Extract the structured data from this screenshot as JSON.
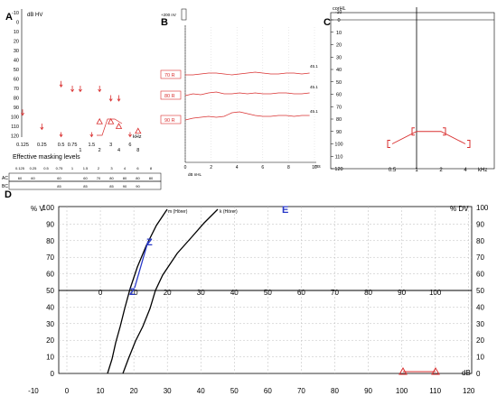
{
  "panel_labels": {
    "a": "A",
    "b": "B",
    "c": "C",
    "d": "D"
  },
  "panel_a": {
    "y_unit": "dB HV",
    "y_ticks": [
      "-10",
      "0",
      "10",
      "20",
      "30",
      "40",
      "50",
      "60",
      "70",
      "80",
      "90",
      "100",
      "110",
      "120"
    ],
    "x_ticks_top": [
      "0.125",
      "0.25",
      "0.5",
      "0.75",
      "1.5",
      "3",
      "6"
    ],
    "x_ticks_bottom": [
      "1",
      "2",
      "4",
      "8"
    ],
    "x_unit": "kHz",
    "masking_title": "Effective masking levels",
    "masking_freqs": [
      "0.125",
      "0.25",
      "0.5",
      "0.75",
      "1",
      "1.5",
      "2",
      "3",
      "4",
      "6",
      "8"
    ],
    "masking_rows": [
      {
        "label": "AC",
        "values": [
          "60",
          "60",
          "",
          "60",
          "",
          "60",
          "70",
          "80",
          "80",
          "80",
          "80"
        ]
      },
      {
        "label": "BC",
        "values": [
          "",
          "",
          "",
          "85",
          "",
          "85",
          "",
          "85",
          "90",
          "90",
          ""
        ]
      }
    ],
    "colors": {
      "marker": "#d93030"
    }
  },
  "panel_b": {
    "scale_label": "+200 nV",
    "y_label": "dB nHL",
    "x_ticks": [
      "0",
      "2",
      "4",
      "6",
      "8",
      "10"
    ],
    "x_unit": "ms",
    "traces": [
      {
        "level": "70 R",
        "value": "45.1"
      },
      {
        "level": "80 R",
        "value": "45.1"
      },
      {
        "level": "90 R",
        "value": "45.1"
      }
    ]
  },
  "panel_c": {
    "y_unit": "corHL",
    "y_ticks": [
      "0",
      "10",
      "20",
      "30",
      "40",
      "50",
      "60",
      "70",
      "80",
      "90",
      "100",
      "110",
      "120"
    ],
    "x_ticks": [
      "0.5",
      "1",
      "2",
      "4"
    ],
    "x_unit": "kHz",
    "top_tick": "-10"
  },
  "panel_d": {
    "left_unit": "% V",
    "right_unit": "% DV",
    "top_ticks": [
      "0",
      "10",
      "20",
      "30",
      "40",
      "50",
      "60",
      "70",
      "80",
      "90",
      "100"
    ],
    "y_ticks": [
      "100",
      "90",
      "80",
      "70",
      "60",
      "50",
      "40",
      "30",
      "20",
      "10",
      "0"
    ],
    "x_ticks": [
      "-10",
      "0",
      "10",
      "20",
      "30",
      "40",
      "50",
      "60",
      "70",
      "80",
      "90",
      "100",
      "110",
      "120"
    ],
    "x_unit": "dB",
    "curve_labels": [
      "m (Hörer)",
      "k (Hörer)"
    ],
    "marker_e": "E",
    "marker_z": "Z"
  },
  "chart_data": [
    {
      "type": "scatter",
      "x": [
        0.125,
        0.25,
        0.5,
        0.75,
        1,
        1.5,
        2,
        3,
        4,
        6,
        8
      ],
      "series": [
        {
          "values": [
            95,
            110,
            65,
            70,
            70,
            null,
            70,
            80,
            80,
            null,
            null
          ]
        },
        {
          "values": [
            null,
            null,
            120,
            null,
            null,
            120,
            105,
            105,
            110,
            120,
            115
          ]
        }
      ],
      "xlabel": "kHz",
      "ylabel": "dB HV",
      "ylim": [
        -10,
        120
      ],
      "grid": false
    },
    {
      "type": "line",
      "x": [
        0.5,
        1,
        2,
        4
      ],
      "values": [
        100,
        90,
        90,
        100
      ],
      "xlabel": "kHz",
      "ylabel": "corHL",
      "ylim": [
        0,
        120
      ]
    }
  ]
}
